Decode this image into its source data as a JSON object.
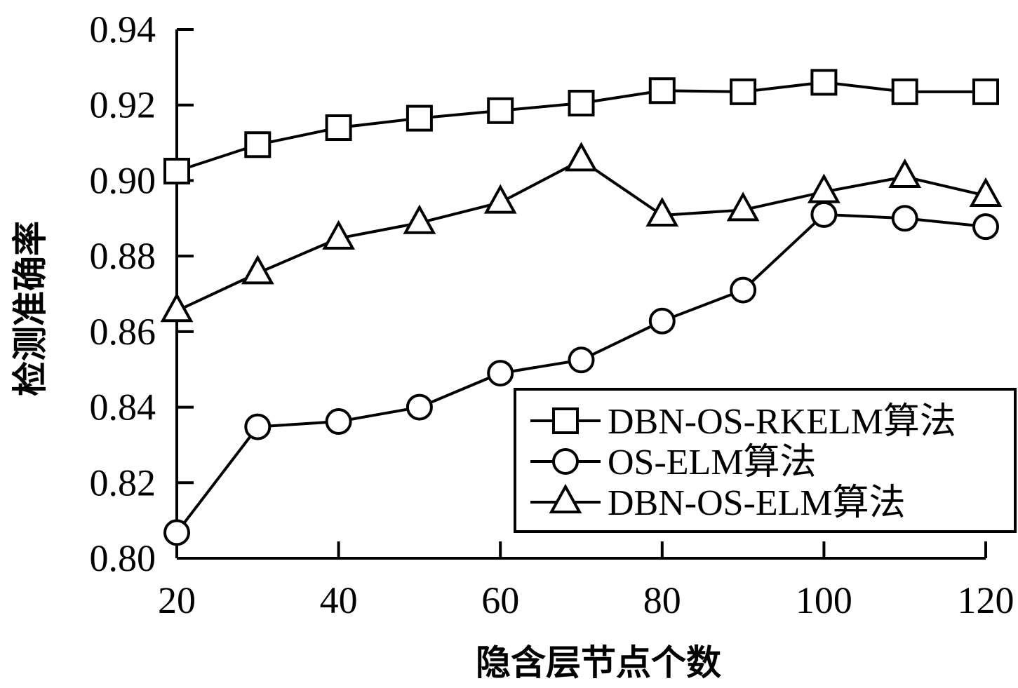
{
  "chart_data": {
    "type": "line",
    "title": "",
    "xlabel": "隐含层节点个数",
    "ylabel": "检测准确率",
    "x": [
      20,
      30,
      40,
      50,
      60,
      70,
      80,
      90,
      100,
      110,
      120
    ],
    "xlim": [
      20,
      120
    ],
    "ylim": [
      0.8,
      0.94
    ],
    "xticks": [
      20,
      40,
      60,
      80,
      100,
      120
    ],
    "yticks": [
      0.8,
      0.82,
      0.84,
      0.86,
      0.88,
      0.9,
      0.92,
      0.94
    ],
    "xtick_labels": [
      "20",
      "40",
      "60",
      "80",
      "100",
      "120"
    ],
    "ytick_labels": [
      "0.80",
      "0.82",
      "0.84",
      "0.86",
      "0.88",
      "0.90",
      "0.92",
      "0.94"
    ],
    "grid": false,
    "legend_position": "bottom-right",
    "series": [
      {
        "name": "DBN-OS-RKELM算法",
        "marker": "square",
        "color": "#000000",
        "values": [
          0.9025,
          0.9095,
          0.914,
          0.9165,
          0.9185,
          0.9205,
          0.9238,
          0.9235,
          0.926,
          0.9235,
          0.9235
        ]
      },
      {
        "name": "OS-ELM算法",
        "marker": "circle",
        "color": "#000000",
        "values": [
          0.8068,
          0.8348,
          0.8362,
          0.84,
          0.849,
          0.8525,
          0.8628,
          0.871,
          0.891,
          0.89,
          0.8878
        ]
      },
      {
        "name": "DBN-OS-ELM算法",
        "marker": "triangle",
        "color": "#000000",
        "values": [
          0.8655,
          0.8755,
          0.8847,
          0.8888,
          0.8942,
          0.9054,
          0.8908,
          0.8922,
          0.897,
          0.901,
          0.896
        ]
      }
    ]
  }
}
